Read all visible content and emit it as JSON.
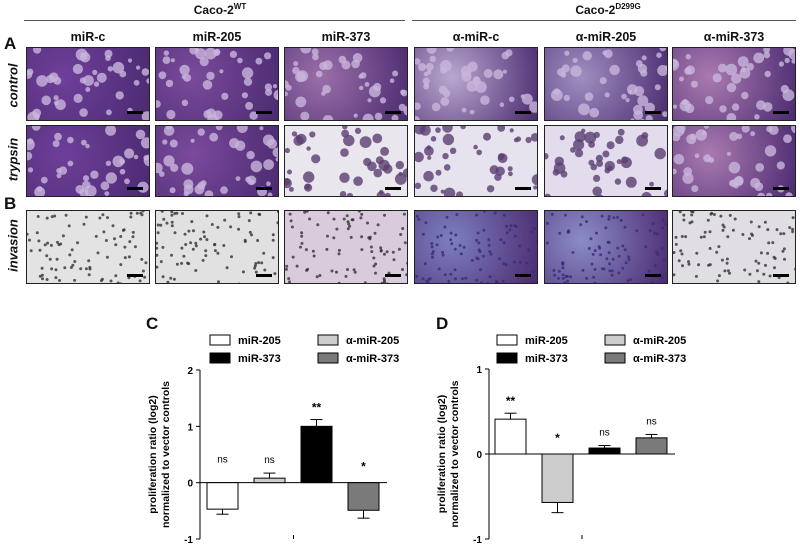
{
  "groups": [
    {
      "name": "Caco-2",
      "sup": "WT"
    },
    {
      "name": "Caco-2",
      "sup": "D299G"
    }
  ],
  "columns": [
    "miR-c",
    "miR-205",
    "miR-373",
    "α-miR-c",
    "α-miR-205",
    "α-miR-373"
  ],
  "panel_labels": {
    "a": "A",
    "b": "B",
    "c": "C",
    "d": "D"
  },
  "row_labels": [
    "control",
    "trypsin",
    "invasion"
  ],
  "image_tones": {
    "control": [
      "#6e3f9a",
      "#7a4a9c",
      "#9a6fa8",
      "#b8a8cf",
      "#9e8fc0",
      "#a97ab0"
    ],
    "trypsin": [
      "#6e3f9a",
      "#7a4a9c",
      "#e9e6ee",
      "#e6e2ee",
      "#e2dced",
      "#a97ab0"
    ],
    "invasion": [
      "#e3e3e3",
      "#e1e1e1",
      "#d9cadc",
      "#7d7fbf",
      "#8b8cc8",
      "#e0dde3"
    ]
  },
  "chart_data": [
    {
      "type": "bar",
      "panel": "C",
      "ylabel": "proliferation ratio (log2)\nnormalized to vector controls",
      "ylim": [
        -1,
        2
      ],
      "yticks": [
        -1,
        0,
        1,
        2
      ],
      "legend": [
        {
          "name": "miR-205",
          "color": "#ffffff"
        },
        {
          "name": "α-miR-205",
          "color": "#cccccc"
        },
        {
          "name": "miR-373",
          "color": "#000000"
        },
        {
          "name": "α-miR-373",
          "color": "#7a7a7a"
        }
      ],
      "series": [
        {
          "name": "miR-205",
          "value": -0.47,
          "err": 0.09,
          "sig": "ns",
          "color": "#ffffff"
        },
        {
          "name": "α-miR-205",
          "value": 0.08,
          "err": 0.09,
          "sig": "ns",
          "color": "#cccccc"
        },
        {
          "name": "miR-373",
          "value": 1.0,
          "err": 0.12,
          "sig": "**",
          "color": "#000000"
        },
        {
          "name": "α-miR-373",
          "value": -0.49,
          "err": 0.14,
          "sig": "*",
          "color": "#7a7a7a"
        }
      ]
    },
    {
      "type": "bar",
      "panel": "D",
      "ylabel": "proliferation ratio (log2)\nnormalized to vector controls",
      "ylim": [
        -1,
        1
      ],
      "yticks": [
        -1,
        0,
        1
      ],
      "legend": [
        {
          "name": "miR-205",
          "color": "#ffffff"
        },
        {
          "name": "α-miR-205",
          "color": "#cccccc"
        },
        {
          "name": "miR-373",
          "color": "#000000"
        },
        {
          "name": "α-miR-373",
          "color": "#7a7a7a"
        }
      ],
      "series": [
        {
          "name": "miR-205",
          "value": 0.41,
          "err": 0.07,
          "sig": "**",
          "color": "#ffffff"
        },
        {
          "name": "α-miR-205",
          "value": -0.57,
          "err": 0.12,
          "sig": "*",
          "color": "#cccccc"
        },
        {
          "name": "miR-373",
          "value": 0.07,
          "err": 0.03,
          "sig": "ns",
          "color": "#000000"
        },
        {
          "name": "α-miR-373",
          "value": 0.19,
          "err": 0.04,
          "sig": "ns",
          "color": "#7a7a7a"
        }
      ]
    }
  ]
}
